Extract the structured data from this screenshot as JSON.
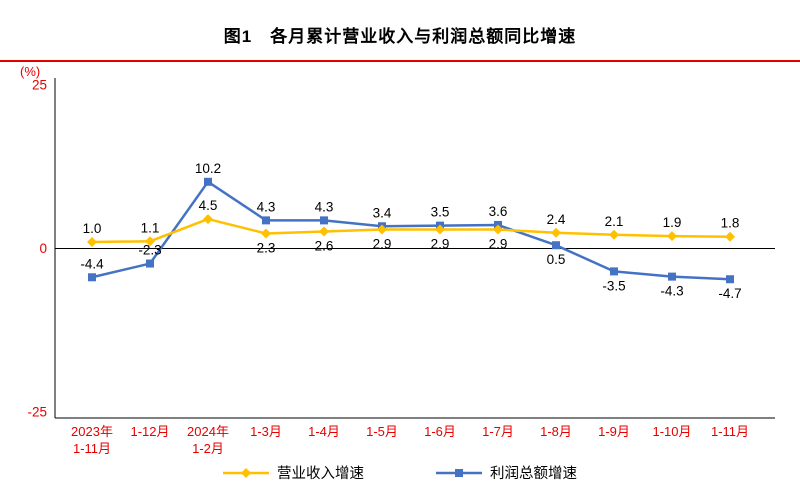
{
  "chart_data": {
    "type": "line",
    "title": "图1　各月累计营业收入与利润总额同比增速",
    "unit_label": "(%)",
    "categories": [
      [
        "2023年",
        "1-11月"
      ],
      [
        "1-12月"
      ],
      [
        "2024年",
        "1-2月"
      ],
      [
        "1-3月"
      ],
      [
        "1-4月"
      ],
      [
        "1-5月"
      ],
      [
        "1-6月"
      ],
      [
        "1-7月"
      ],
      [
        "1-8月"
      ],
      [
        "1-9月"
      ],
      [
        "1-10月"
      ],
      [
        "1-11月"
      ]
    ],
    "y_ticks": [
      25,
      0,
      -25
    ],
    "ylim": [
      -25,
      25
    ],
    "grid": false,
    "legend_position": "bottom",
    "series": [
      {
        "name": "营业收入增速",
        "color": "#FFC000",
        "marker": "diamond",
        "values": [
          1.0,
          1.1,
          4.5,
          2.3,
          2.6,
          2.9,
          2.9,
          2.9,
          2.4,
          2.1,
          1.9,
          1.8
        ],
        "label_sides": [
          "above",
          "above",
          "above",
          "below",
          "below",
          "below",
          "below",
          "below",
          "above",
          "above",
          "above",
          "above"
        ]
      },
      {
        "name": "利润总额增速",
        "color": "#4472C4",
        "marker": "square",
        "values": [
          -4.4,
          -2.3,
          10.2,
          4.3,
          4.3,
          3.4,
          3.5,
          3.6,
          0.5,
          -3.5,
          -4.3,
          -4.7
        ],
        "label_sides": [
          "above",
          "above",
          "above",
          "above",
          "above",
          "above",
          "above",
          "above",
          "below",
          "below",
          "below",
          "below"
        ]
      }
    ],
    "colors": {
      "axis_text": "#e60000",
      "rule": "#e60000",
      "axis_line": "#000000",
      "data_label": "#000000"
    }
  }
}
